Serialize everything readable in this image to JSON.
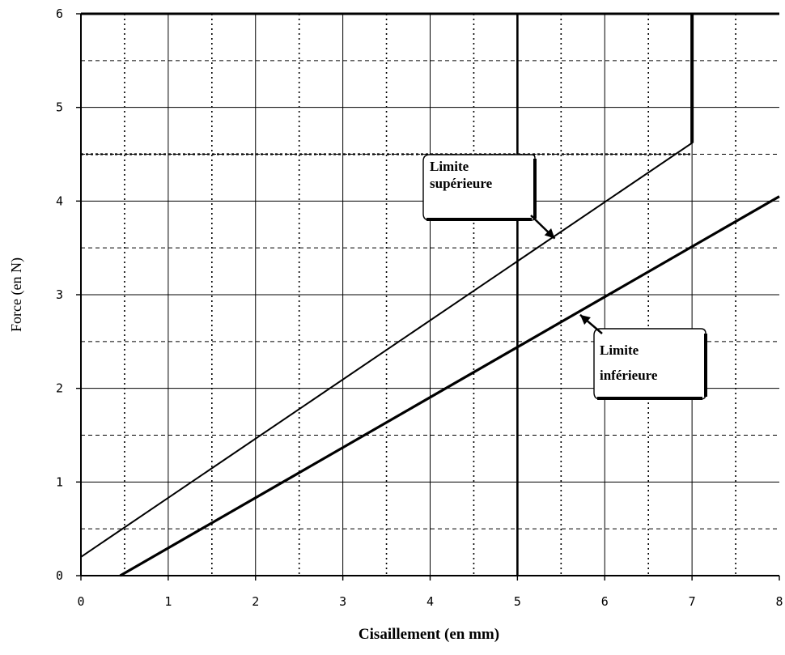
{
  "chart_data": {
    "type": "line",
    "title": "",
    "xlabel": "Cisaillement (en mm)",
    "ylabel": "Force (en N)",
    "xlim": [
      0,
      8
    ],
    "ylim": [
      0,
      6
    ],
    "x_ticks": [
      "0",
      "1",
      "2",
      "3",
      "4",
      "5",
      "6",
      "7",
      "8"
    ],
    "y_ticks": [
      "0",
      "1",
      "2",
      "3",
      "4",
      "5",
      "6"
    ],
    "grid": true,
    "grid_minor_dashed": true,
    "series": [
      {
        "name": "Limite supérieure",
        "points": [
          [
            0,
            0.2
          ],
          [
            7,
            4.62
          ],
          [
            7,
            6
          ]
        ],
        "color": "#000000"
      },
      {
        "name": "Limite inférieure",
        "points": [
          [
            0.45,
            0
          ],
          [
            8,
            4.05
          ]
        ],
        "color": "#000000"
      }
    ],
    "vertical_marker": {
      "x": 5
    },
    "extra_dashed_lines": [
      {
        "y": 4.5,
        "from_x": 0,
        "to_x": 7
      }
    ],
    "annotations": [
      {
        "lines": [
          "Limite",
          "supérieure"
        ],
        "arrow_to": [
          5.4,
          3.6
        ]
      },
      {
        "lines": [
          "Limite",
          "inférieure"
        ],
        "arrow_to": [
          5.7,
          2.82
        ]
      }
    ]
  }
}
